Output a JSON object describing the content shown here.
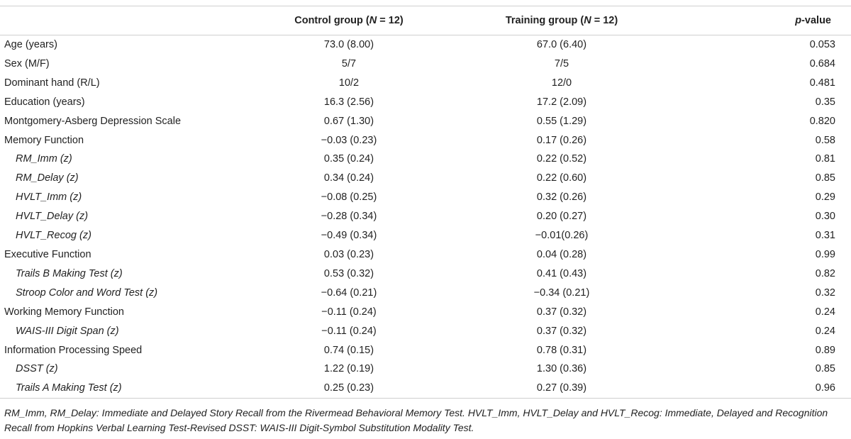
{
  "table": {
    "headers": [
      "",
      "Control group (N = 12)",
      "Training group (N = 12)",
      "p-value"
    ],
    "rows": [
      {
        "label": "Age (years)",
        "control": "73.0 (8.00)",
        "training": "67.0 (6.40)",
        "p": "0.053",
        "sub": false
      },
      {
        "label": "Sex (M/F)",
        "control": "5/7",
        "training": "7/5",
        "p": "0.684",
        "sub": false
      },
      {
        "label": "Dominant hand (R/L)",
        "control": "10/2",
        "training": "12/0",
        "p": "0.481",
        "sub": false
      },
      {
        "label": "Education (years)",
        "control": "16.3 (2.56)",
        "training": "17.2 (2.09)",
        "p": "0.35",
        "sub": false
      },
      {
        "label": "Montgomery-Asberg Depression Scale",
        "control": "0.67 (1.30)",
        "training": "0.55 (1.29)",
        "p": "0.820",
        "sub": false
      },
      {
        "label": "Memory Function",
        "control": "−0.03 (0.23)",
        "training": "0.17 (0.26)",
        "p": "0.58",
        "sub": false
      },
      {
        "label": "RM_Imm (z)",
        "control": "0.35 (0.24)",
        "training": "0.22 (0.52)",
        "p": "0.81",
        "sub": true
      },
      {
        "label": "RM_Delay (z)",
        "control": "0.34 (0.24)",
        "training": "0.22 (0.60)",
        "p": "0.85",
        "sub": true
      },
      {
        "label": "HVLT_Imm (z)",
        "control": "−0.08 (0.25)",
        "training": "0.32 (0.26)",
        "p": "0.29",
        "sub": true
      },
      {
        "label": "HVLT_Delay (z)",
        "control": "−0.28 (0.34)",
        "training": "0.20 (0.27)",
        "p": "0.30",
        "sub": true
      },
      {
        "label": "HVLT_Recog (z)",
        "control": "−0.49 (0.34)",
        "training": "−0.01(0.26)",
        "p": "0.31",
        "sub": true
      },
      {
        "label": "Executive Function",
        "control": "0.03 (0.23)",
        "training": "0.04 (0.28)",
        "p": "0.99",
        "sub": false
      },
      {
        "label": "Trails B Making Test (z)",
        "control": "0.53 (0.32)",
        "training": "0.41 (0.43)",
        "p": "0.82",
        "sub": true
      },
      {
        "label": "Stroop Color and Word Test (z)",
        "control": "−0.64 (0.21)",
        "training": "−0.34 (0.21)",
        "p": "0.32",
        "sub": true
      },
      {
        "label": "Working Memory Function",
        "control": "−0.11 (0.24)",
        "training": "0.37 (0.32)",
        "p": "0.24",
        "sub": false
      },
      {
        "label": "WAIS-III Digit Span (z)",
        "control": "−0.11 (0.24)",
        "training": "0.37 (0.32)",
        "p": "0.24",
        "sub": true
      },
      {
        "label": "Information Processing Speed",
        "control": "0.74 (0.15)",
        "training": "0.78 (0.31)",
        "p": "0.89",
        "sub": false
      },
      {
        "label": "DSST (z)",
        "control": "1.22 (0.19)",
        "training": "1.30 (0.36)",
        "p": "0.85",
        "sub": true
      },
      {
        "label": "Trails A Making Test (z)",
        "control": "0.25 (0.23)",
        "training": "0.27 (0.39)",
        "p": "0.96",
        "sub": true
      }
    ]
  },
  "caption": "RM_Imm, RM_Delay: Immediate and Delayed Story Recall from the Rivermead Behavioral Memory Test. HVLT_Imm, HVLT_Delay and HVLT_Recog: Immediate, Delayed and Recognition Recall from Hopkins Verbal Learning Test-Revised DSST: WAIS-III Digit-Symbol Substitution Modality Test."
}
